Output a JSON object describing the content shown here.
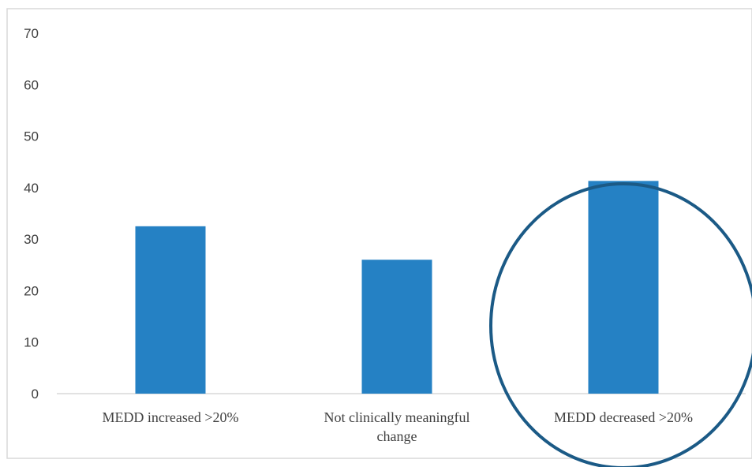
{
  "chart_data": {
    "type": "bar",
    "categories": [
      [
        "MEDD increased >20%"
      ],
      [
        "Not clinically meaningful",
        "change"
      ],
      [
        "MEDD decreased >20%"
      ]
    ],
    "values": [
      32.5,
      26,
      41.3
    ],
    "ylim": [
      0,
      70
    ],
    "yticks": [
      0,
      10,
      20,
      30,
      40,
      50,
      60,
      70
    ],
    "grid": false,
    "legend": "none",
    "highlighted_category_index": 2
  },
  "colors": {
    "bar": "#2581c4",
    "highlight_circle": "#1b5a86",
    "frame": "#d9d9d9",
    "axis": "#d9d9d9",
    "text": "#404040"
  }
}
